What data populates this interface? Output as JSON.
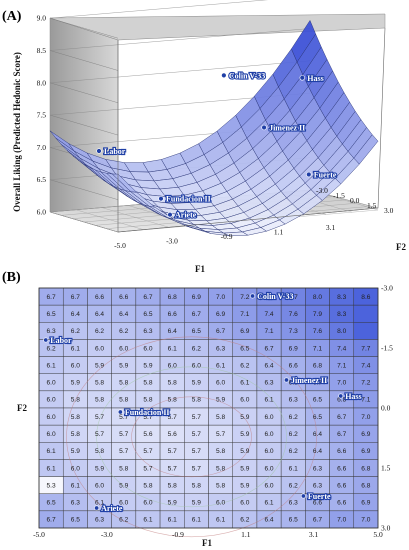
{
  "chart_data": [
    {
      "type": "surface",
      "panel_label": "(A)",
      "zlabel": "Overall Liking (Predicted Hedonic Score)",
      "xlabel": "F1",
      "ylabel": "F2",
      "x_ticks": [
        "-5.0",
        "-3.0",
        "-0.9",
        "1.1",
        "3.1"
      ],
      "y_ticks": [
        "-3.0",
        "-1.5",
        "0.0",
        "1.5",
        "3.0"
      ],
      "z_ticks": [
        "6.0",
        "6.5",
        "7.0",
        "7.5",
        "8.0",
        "8.5",
        "9.0"
      ],
      "zlim": [
        6.0,
        9.0
      ],
      "points": [
        {
          "label": "Labor",
          "f1": -3.9,
          "f2": -1.2,
          "z": 7.0
        },
        {
          "label": "Fundacion II",
          "f1": -2.3,
          "f2": 0.6,
          "z": 6.3
        },
        {
          "label": "Ariete",
          "f1": -3.0,
          "f2": 3.0,
          "z": 6.2
        },
        {
          "label": "Colin V-33",
          "f1": 1.6,
          "f2": -2.8,
          "z": 7.9
        },
        {
          "label": "Hass",
          "f1": 3.7,
          "f2": -0.7,
          "z": 7.9
        },
        {
          "label": "Jimenez II",
          "f1": 2.1,
          "f2": -0.4,
          "z": 7.2
        },
        {
          "label": "Fuerte",
          "f1": 2.6,
          "f2": 2.4,
          "z": 6.6
        }
      ]
    },
    {
      "type": "heatmap",
      "panel_label": "(B)",
      "xlabel": "F1",
      "ylabel": "F2",
      "x_ticks": [
        "-5.0",
        "-3.0",
        "-0.9",
        "1.1",
        "3.1",
        "5.0"
      ],
      "y_ticks": [
        "-3.0",
        "-1.5",
        "0.0",
        "1.5",
        "3.0"
      ],
      "grid": [
        [
          "6.7",
          "6.7",
          "6.6",
          "6.6",
          "6.7",
          "6.8",
          "6.9",
          "7.0",
          "7.2",
          "7.4",
          "7.7",
          "8.0",
          "8.3",
          "8.6"
        ],
        [
          "6.5",
          "6.4",
          "6.4",
          "6.4",
          "6.5",
          "6.6",
          "6.7",
          "6.9",
          "7.1",
          "7.4",
          "7.6",
          "7.9",
          "8.3",
          ""
        ],
        [
          "6.3",
          "6.2",
          "6.2",
          "6.2",
          "6.3",
          "6.4",
          "6.5",
          "6.7",
          "6.9",
          "7.1",
          "7.3",
          "7.6",
          "8.0",
          ""
        ],
        [
          "6.2",
          "6.1",
          "6.0",
          "6.0",
          "6.0",
          "6.1",
          "6.2",
          "6.3",
          "6.5",
          "6.7",
          "6.9",
          "7.1",
          "7.4",
          "7.7"
        ],
        [
          "6.1",
          "6.0",
          "5.9",
          "5.9",
          "5.9",
          "6.0",
          "6.0",
          "6.1",
          "6.2",
          "6.4",
          "6.6",
          "6.8",
          "7.1",
          "7.4"
        ],
        [
          "6.0",
          "5.9",
          "5.8",
          "5.8",
          "5.8",
          "5.8",
          "5.9",
          "6.0",
          "6.1",
          "6.3",
          "6.5",
          "6.7",
          "7.0",
          "7.2"
        ],
        [
          "6.0",
          "5.8",
          "5.8",
          "5.8",
          "5.8",
          "5.8",
          "5.8",
          "5.9",
          "6.0",
          "6.1",
          "6.3",
          "6.5",
          "6.8",
          "7.1"
        ],
        [
          "6.0",
          "5.8",
          "5.7",
          "5.7",
          "5.7",
          "5.7",
          "5.7",
          "5.8",
          "5.9",
          "6.0",
          "6.2",
          "6.5",
          "6.7",
          "7.0"
        ],
        [
          "6.0",
          "5.8",
          "5.7",
          "5.7",
          "5.6",
          "5.6",
          "5.7",
          "5.7",
          "5.9",
          "6.0",
          "6.2",
          "6.4",
          "6.7",
          "6.9"
        ],
        [
          "6.1",
          "5.9",
          "5.8",
          "5.7",
          "5.7",
          "5.7",
          "5.7",
          "5.8",
          "5.9",
          "6.0",
          "6.2",
          "6.4",
          "6.6",
          "6.9"
        ],
        [
          "6.1",
          "6.0",
          "5.9",
          "5.8",
          "5.7",
          "5.7",
          "5.7",
          "5.8",
          "5.9",
          "6.0",
          "6.1",
          "6.3",
          "6.6",
          "6.8"
        ],
        [
          "5.3",
          "6.1",
          "6.0",
          "5.9",
          "5.8",
          "5.8",
          "5.8",
          "5.8",
          "5.9",
          "6.0",
          "6.2",
          "6.3",
          "6.6",
          "6.8"
        ],
        [
          "6.5",
          "6.3",
          "6.1",
          "6.0",
          "6.0",
          "5.9",
          "5.9",
          "6.0",
          "6.0",
          "6.1",
          "6.3",
          "6.6",
          "6.6",
          "6.9"
        ],
        [
          "6.7",
          "6.5",
          "6.3",
          "6.2",
          "6.1",
          "6.1",
          "6.1",
          "6.1",
          "6.2",
          "6.4",
          "6.5",
          "6.7",
          "7.0",
          "7.0"
        ]
      ],
      "points": [
        {
          "label": "Labor",
          "f1": -4.8,
          "f2": -1.7
        },
        {
          "label": "Fundacion II",
          "f1": -2.6,
          "f2": 0.1
        },
        {
          "label": "Ariete",
          "f1": -3.3,
          "f2": 2.5
        },
        {
          "label": "Colin V-33",
          "f1": 1.3,
          "f2": -2.8
        },
        {
          "label": "Jimenez II",
          "f1": 2.3,
          "f2": -0.7
        },
        {
          "label": "Hass",
          "f1": 3.9,
          "f2": -0.3
        },
        {
          "label": "Fuerte",
          "f1": 2.8,
          "f2": 2.2
        }
      ]
    }
  ],
  "colors": {
    "surface_high": "#3a4fd6",
    "surface_low": "#e8ecfb",
    "marker": "#1f3fa6",
    "wall": "#bfbfbf",
    "contour": "#c07a7a"
  }
}
